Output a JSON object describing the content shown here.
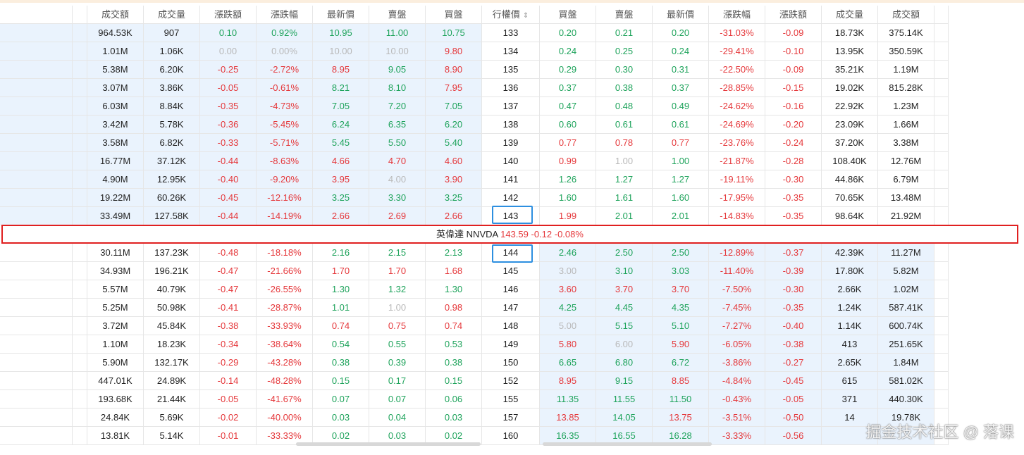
{
  "header": {
    "columns": [
      "成交額",
      "成交量",
      "漲跌額",
      "漲跌幅",
      "最新價",
      "賣盤",
      "買盤",
      "行權價",
      "買盤",
      "賣盤",
      "最新價",
      "漲跌幅",
      "漲跌額",
      "成交量",
      "成交額"
    ]
  },
  "table": {
    "above": [
      {
        "strike": "133",
        "call": [
          "964.53K",
          "907",
          "0.10",
          "0.92%",
          "10.95",
          "11.00",
          "10.75"
        ],
        "call_tones": [
          "k",
          "k",
          "g",
          "g",
          "g",
          "g",
          "g"
        ],
        "put": [
          "0.20",
          "0.21",
          "0.20",
          "-31.03%",
          "-0.09",
          "18.73K",
          "375.14K"
        ],
        "put_tones": [
          "g",
          "g",
          "g",
          "r",
          "r",
          "k",
          "k"
        ]
      },
      {
        "strike": "134",
        "call": [
          "1.01M",
          "1.06K",
          "0.00",
          "0.00%",
          "10.00",
          "10.00",
          "9.80"
        ],
        "call_tones": [
          "k",
          "k",
          "n",
          "n",
          "n",
          "n",
          "r"
        ],
        "put": [
          "0.24",
          "0.25",
          "0.24",
          "-29.41%",
          "-0.10",
          "13.95K",
          "350.59K"
        ],
        "put_tones": [
          "g",
          "g",
          "g",
          "r",
          "r",
          "k",
          "k"
        ]
      },
      {
        "strike": "135",
        "call": [
          "5.38M",
          "6.20K",
          "-0.25",
          "-2.72%",
          "8.95",
          "9.05",
          "8.90"
        ],
        "call_tones": [
          "k",
          "k",
          "r",
          "r",
          "r",
          "g",
          "r"
        ],
        "put": [
          "0.29",
          "0.30",
          "0.31",
          "-22.50%",
          "-0.09",
          "35.21K",
          "1.19M"
        ],
        "put_tones": [
          "g",
          "g",
          "g",
          "r",
          "r",
          "k",
          "k"
        ]
      },
      {
        "strike": "136",
        "call": [
          "3.07M",
          "3.86K",
          "-0.05",
          "-0.61%",
          "8.21",
          "8.10",
          "7.95"
        ],
        "call_tones": [
          "k",
          "k",
          "r",
          "r",
          "g",
          "g",
          "r"
        ],
        "put": [
          "0.37",
          "0.38",
          "0.37",
          "-28.85%",
          "-0.15",
          "19.02K",
          "815.28K"
        ],
        "put_tones": [
          "g",
          "g",
          "g",
          "r",
          "r",
          "k",
          "k"
        ]
      },
      {
        "strike": "137",
        "call": [
          "6.03M",
          "8.84K",
          "-0.35",
          "-4.73%",
          "7.05",
          "7.20",
          "7.05"
        ],
        "call_tones": [
          "k",
          "k",
          "r",
          "r",
          "g",
          "g",
          "g"
        ],
        "put": [
          "0.47",
          "0.48",
          "0.49",
          "-24.62%",
          "-0.16",
          "22.92K",
          "1.23M"
        ],
        "put_tones": [
          "g",
          "g",
          "g",
          "r",
          "r",
          "k",
          "k"
        ]
      },
      {
        "strike": "138",
        "call": [
          "3.42M",
          "5.78K",
          "-0.36",
          "-5.45%",
          "6.24",
          "6.35",
          "6.20"
        ],
        "call_tones": [
          "k",
          "k",
          "r",
          "r",
          "g",
          "g",
          "g"
        ],
        "put": [
          "0.60",
          "0.61",
          "0.61",
          "-24.69%",
          "-0.20",
          "23.09K",
          "1.66M"
        ],
        "put_tones": [
          "g",
          "g",
          "g",
          "r",
          "r",
          "k",
          "k"
        ]
      },
      {
        "strike": "139",
        "call": [
          "3.58M",
          "6.82K",
          "-0.33",
          "-5.71%",
          "5.45",
          "5.50",
          "5.40"
        ],
        "call_tones": [
          "k",
          "k",
          "r",
          "r",
          "g",
          "g",
          "g"
        ],
        "put": [
          "0.77",
          "0.78",
          "0.77",
          "-23.76%",
          "-0.24",
          "37.20K",
          "3.38M"
        ],
        "put_tones": [
          "r",
          "r",
          "r",
          "r",
          "r",
          "k",
          "k"
        ]
      },
      {
        "strike": "140",
        "call": [
          "16.77M",
          "37.12K",
          "-0.44",
          "-8.63%",
          "4.66",
          "4.70",
          "4.60"
        ],
        "call_tones": [
          "k",
          "k",
          "r",
          "r",
          "r",
          "r",
          "r"
        ],
        "put": [
          "0.99",
          "1.00",
          "1.00",
          "-21.87%",
          "-0.28",
          "108.40K",
          "12.76M"
        ],
        "put_tones": [
          "r",
          "n",
          "g",
          "r",
          "r",
          "k",
          "k"
        ]
      },
      {
        "strike": "141",
        "call": [
          "4.90M",
          "12.95K",
          "-0.40",
          "-9.20%",
          "3.95",
          "4.00",
          "3.90"
        ],
        "call_tones": [
          "k",
          "k",
          "r",
          "r",
          "r",
          "n",
          "r"
        ],
        "put": [
          "1.26",
          "1.27",
          "1.27",
          "-19.11%",
          "-0.30",
          "44.86K",
          "6.79M"
        ],
        "put_tones": [
          "g",
          "g",
          "g",
          "r",
          "r",
          "k",
          "k"
        ]
      },
      {
        "strike": "142",
        "call": [
          "19.22M",
          "60.26K",
          "-0.45",
          "-12.16%",
          "3.25",
          "3.30",
          "3.25"
        ],
        "call_tones": [
          "k",
          "k",
          "r",
          "r",
          "g",
          "g",
          "g"
        ],
        "put": [
          "1.60",
          "1.61",
          "1.60",
          "-17.95%",
          "-0.35",
          "70.65K",
          "13.48M"
        ],
        "put_tones": [
          "g",
          "g",
          "g",
          "r",
          "r",
          "k",
          "k"
        ]
      },
      {
        "strike": "143",
        "call": [
          "33.49M",
          "127.58K",
          "-0.44",
          "-14.19%",
          "2.66",
          "2.69",
          "2.66"
        ],
        "call_tones": [
          "k",
          "k",
          "r",
          "r",
          "r",
          "r",
          "r"
        ],
        "put": [
          "1.99",
          "2.01",
          "2.01",
          "-14.83%",
          "-0.35",
          "98.64K",
          "21.92M"
        ],
        "put_tones": [
          "r",
          "g",
          "g",
          "r",
          "r",
          "k",
          "k"
        ]
      }
    ],
    "banner": {
      "name": "英偉達",
      "ticker": "NNVDA",
      "price": "143.59",
      "change": "-0.12",
      "change_pct": "-0.08%"
    },
    "below": [
      {
        "strike": "144",
        "call": [
          "30.11M",
          "137.23K",
          "-0.48",
          "-18.18%",
          "2.16",
          "2.15",
          "2.13"
        ],
        "call_tones": [
          "k",
          "k",
          "r",
          "r",
          "g",
          "g",
          "g"
        ],
        "put": [
          "2.46",
          "2.50",
          "2.50",
          "-12.89%",
          "-0.37",
          "42.39K",
          "11.27M"
        ],
        "put_tones": [
          "g",
          "g",
          "g",
          "r",
          "r",
          "k",
          "k"
        ]
      },
      {
        "strike": "145",
        "call": [
          "34.93M",
          "196.21K",
          "-0.47",
          "-21.66%",
          "1.70",
          "1.70",
          "1.68"
        ],
        "call_tones": [
          "k",
          "k",
          "r",
          "r",
          "r",
          "r",
          "r"
        ],
        "put": [
          "3.00",
          "3.10",
          "3.03",
          "-11.40%",
          "-0.39",
          "17.80K",
          "5.82M"
        ],
        "put_tones": [
          "n",
          "g",
          "g",
          "r",
          "r",
          "k",
          "k"
        ]
      },
      {
        "strike": "146",
        "call": [
          "5.57M",
          "40.79K",
          "-0.47",
          "-26.55%",
          "1.30",
          "1.32",
          "1.30"
        ],
        "call_tones": [
          "k",
          "k",
          "r",
          "r",
          "g",
          "g",
          "g"
        ],
        "put": [
          "3.60",
          "3.70",
          "3.70",
          "-7.50%",
          "-0.30",
          "2.66K",
          "1.02M"
        ],
        "put_tones": [
          "r",
          "r",
          "r",
          "r",
          "r",
          "k",
          "k"
        ]
      },
      {
        "strike": "147",
        "call": [
          "5.25M",
          "50.98K",
          "-0.41",
          "-28.87%",
          "1.01",
          "1.00",
          "0.98"
        ],
        "call_tones": [
          "k",
          "k",
          "r",
          "r",
          "g",
          "n",
          "r"
        ],
        "put": [
          "4.25",
          "4.45",
          "4.35",
          "-7.45%",
          "-0.35",
          "1.24K",
          "587.41K"
        ],
        "put_tones": [
          "g",
          "g",
          "g",
          "r",
          "r",
          "k",
          "k"
        ]
      },
      {
        "strike": "148",
        "call": [
          "3.72M",
          "45.84K",
          "-0.38",
          "-33.93%",
          "0.74",
          "0.75",
          "0.74"
        ],
        "call_tones": [
          "k",
          "k",
          "r",
          "r",
          "r",
          "r",
          "r"
        ],
        "put": [
          "5.00",
          "5.15",
          "5.10",
          "-7.27%",
          "-0.40",
          "1.14K",
          "600.74K"
        ],
        "put_tones": [
          "n",
          "g",
          "g",
          "r",
          "r",
          "k",
          "k"
        ]
      },
      {
        "strike": "149",
        "call": [
          "1.10M",
          "18.23K",
          "-0.34",
          "-38.64%",
          "0.54",
          "0.55",
          "0.53"
        ],
        "call_tones": [
          "k",
          "k",
          "r",
          "r",
          "g",
          "g",
          "g"
        ],
        "put": [
          "5.80",
          "6.00",
          "5.90",
          "-6.05%",
          "-0.38",
          "413",
          "251.65K"
        ],
        "put_tones": [
          "r",
          "n",
          "r",
          "r",
          "r",
          "k",
          "k"
        ]
      },
      {
        "strike": "150",
        "call": [
          "5.90M",
          "132.17K",
          "-0.29",
          "-43.28%",
          "0.38",
          "0.39",
          "0.38"
        ],
        "call_tones": [
          "k",
          "k",
          "r",
          "r",
          "g",
          "g",
          "g"
        ],
        "put": [
          "6.65",
          "6.80",
          "6.72",
          "-3.86%",
          "-0.27",
          "2.65K",
          "1.84M"
        ],
        "put_tones": [
          "g",
          "g",
          "g",
          "r",
          "r",
          "k",
          "k"
        ]
      },
      {
        "strike": "152",
        "call": [
          "447.01K",
          "24.89K",
          "-0.14",
          "-48.28%",
          "0.15",
          "0.17",
          "0.15"
        ],
        "call_tones": [
          "k",
          "k",
          "r",
          "r",
          "g",
          "g",
          "g"
        ],
        "put": [
          "8.95",
          "9.15",
          "8.85",
          "-4.84%",
          "-0.45",
          "615",
          "581.02K"
        ],
        "put_tones": [
          "r",
          "g",
          "r",
          "r",
          "r",
          "k",
          "k"
        ]
      },
      {
        "strike": "155",
        "call": [
          "193.68K",
          "21.44K",
          "-0.05",
          "-41.67%",
          "0.07",
          "0.07",
          "0.06"
        ],
        "call_tones": [
          "k",
          "k",
          "r",
          "r",
          "g",
          "g",
          "g"
        ],
        "put": [
          "11.35",
          "11.55",
          "11.50",
          "-0.43%",
          "-0.05",
          "371",
          "440.30K"
        ],
        "put_tones": [
          "g",
          "g",
          "g",
          "r",
          "r",
          "k",
          "k"
        ]
      },
      {
        "strike": "157",
        "call": [
          "24.84K",
          "5.69K",
          "-0.02",
          "-40.00%",
          "0.03",
          "0.04",
          "0.03"
        ],
        "call_tones": [
          "k",
          "k",
          "r",
          "r",
          "g",
          "g",
          "g"
        ],
        "put": [
          "13.85",
          "14.05",
          "13.75",
          "-3.51%",
          "-0.50",
          "14",
          "19.78K"
        ],
        "put_tones": [
          "r",
          "g",
          "r",
          "r",
          "r",
          "k",
          "k"
        ]
      },
      {
        "strike": "160",
        "call": [
          "13.81K",
          "5.14K",
          "-0.01",
          "-33.33%",
          "0.02",
          "0.03",
          "0.02"
        ],
        "call_tones": [
          "k",
          "k",
          "r",
          "r",
          "g",
          "g",
          "g"
        ],
        "put": [
          "16.35",
          "16.55",
          "16.28",
          "-3.33%",
          "-0.56"
        ],
        "put_tones": [
          "g",
          "g",
          "g",
          "r",
          "r"
        ]
      }
    ]
  },
  "watermark": "掘金技术社区 @ 落课"
}
